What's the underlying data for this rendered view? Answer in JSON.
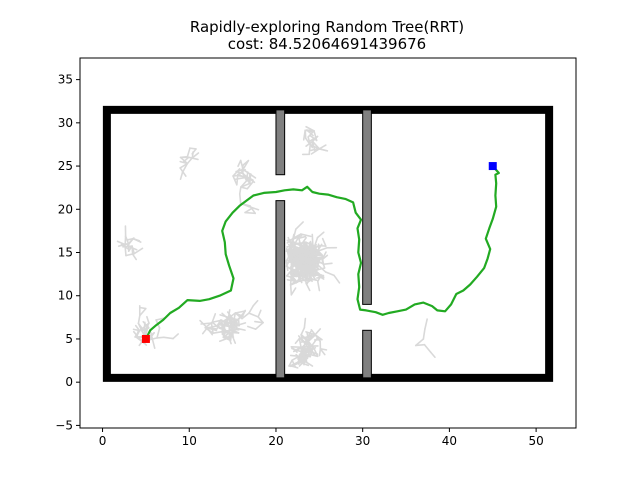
{
  "chart_data": {
    "type": "scatter",
    "title": "Rapidly-exploring Random Tree(RRT)",
    "subtitle": "cost: 84.52064691439676",
    "xlabel": "",
    "ylabel": "",
    "xlim": [
      -2.6,
      54.6
    ],
    "ylim": [
      -5.3,
      37.5
    ],
    "xticks": [
      0,
      10,
      20,
      30,
      40,
      50
    ],
    "yticks": [
      -5,
      0,
      5,
      10,
      15,
      20,
      25,
      30,
      35
    ],
    "grid": false,
    "legend": "none",
    "boundary": {
      "x0": 0.5,
      "y0": 0.5,
      "x1": 51.5,
      "y1": 31.5,
      "color": "#000000"
    },
    "obstacles": [
      {
        "x0": 20,
        "y0": 24,
        "x1": 21,
        "y1": 31.5
      },
      {
        "x0": 20,
        "y0": 0.5,
        "x1": 21,
        "y1": 21
      },
      {
        "x0": 30,
        "y0": 9,
        "x1": 31,
        "y1": 31.5
      },
      {
        "x0": 30,
        "y0": 0.5,
        "x1": 31,
        "y1": 6
      }
    ],
    "obstacle_color": "#808080",
    "start": {
      "x": 5,
      "y": 5,
      "color": "#ff0000"
    },
    "goal": {
      "x": 45,
      "y": 25,
      "color": "#0000ff"
    },
    "path_color": "#22aa22",
    "tree_color": "#d9d9d9",
    "path": [
      [
        5,
        5
      ],
      [
        5.5,
        6.0
      ],
      [
        6.2,
        6.6
      ],
      [
        7.0,
        7.2
      ],
      [
        7.8,
        8.0
      ],
      [
        8.8,
        8.6
      ],
      [
        9.8,
        9.5
      ],
      [
        11.2,
        9.4
      ],
      [
        12.3,
        9.6
      ],
      [
        13.5,
        10.0
      ],
      [
        14.8,
        10.6
      ],
      [
        15.1,
        12.0
      ],
      [
        14.6,
        13.5
      ],
      [
        14.2,
        14.8
      ],
      [
        14.1,
        16.2
      ],
      [
        13.8,
        17.5
      ],
      [
        14.2,
        18.6
      ],
      [
        15.0,
        19.6
      ],
      [
        15.8,
        20.4
      ],
      [
        16.6,
        21.0
      ],
      [
        17.4,
        21.6
      ],
      [
        18.6,
        21.9
      ],
      [
        20.0,
        22.0
      ],
      [
        21.0,
        22.2
      ],
      [
        22.0,
        22.3
      ],
      [
        23.0,
        22.2
      ],
      [
        23.6,
        22.6
      ],
      [
        24.2,
        22.0
      ],
      [
        25.0,
        21.8
      ],
      [
        26.0,
        21.7
      ],
      [
        27.0,
        21.4
      ],
      [
        28.0,
        21.2
      ],
      [
        28.9,
        20.8
      ],
      [
        29.2,
        19.6
      ],
      [
        29.8,
        18.8
      ],
      [
        29.4,
        17.8
      ],
      [
        29.6,
        16.5
      ],
      [
        29.5,
        15.0
      ],
      [
        29.8,
        13.8
      ],
      [
        29.5,
        12.5
      ],
      [
        29.6,
        11.0
      ],
      [
        29.4,
        9.6
      ],
      [
        29.7,
        8.4
      ],
      [
        30.4,
        8.3
      ],
      [
        31.5,
        8.1
      ],
      [
        32.3,
        7.8
      ],
      [
        33.0,
        8.0
      ],
      [
        34.0,
        8.2
      ],
      [
        35.0,
        8.4
      ],
      [
        36.0,
        9.0
      ],
      [
        37.0,
        9.2
      ],
      [
        38.0,
        8.8
      ],
      [
        38.6,
        8.3
      ],
      [
        39.5,
        8.2
      ],
      [
        40.2,
        9.0
      ],
      [
        40.8,
        10.2
      ],
      [
        41.6,
        10.6
      ],
      [
        42.4,
        11.3
      ],
      [
        43.2,
        12.2
      ],
      [
        44.0,
        13.2
      ],
      [
        44.4,
        14.3
      ],
      [
        44.7,
        15.4
      ],
      [
        44.2,
        16.6
      ],
      [
        44.6,
        17.8
      ],
      [
        45.0,
        18.9
      ],
      [
        45.4,
        20.3
      ],
      [
        45.3,
        21.6
      ],
      [
        45.4,
        23.0
      ],
      [
        45.3,
        24.0
      ],
      [
        45.7,
        24.2
      ],
      [
        45.0,
        25.0
      ]
    ]
  }
}
